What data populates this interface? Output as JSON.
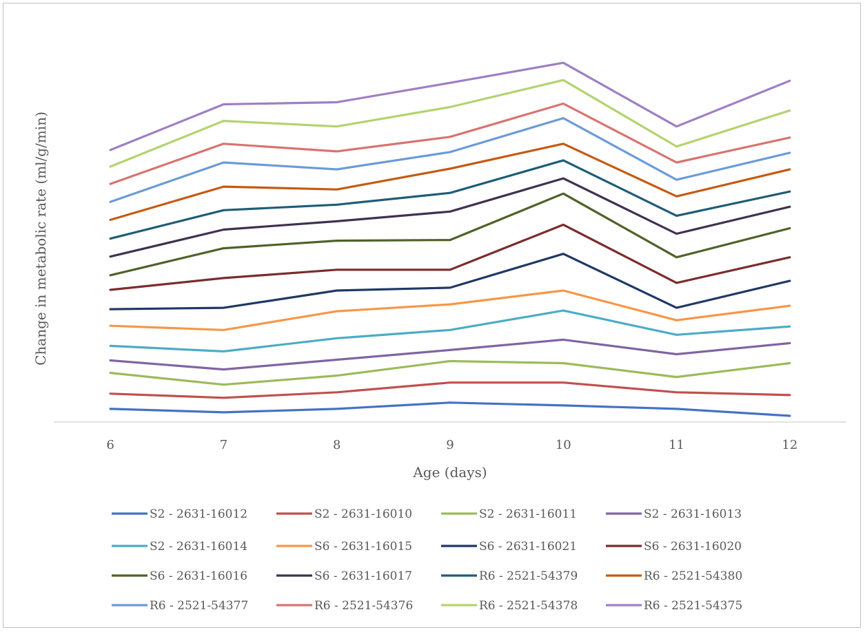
{
  "chart_data": {
    "type": "line",
    "title": "",
    "xlabel": "Age (days)",
    "ylabel": "Change in metabolic rate (ml/g/min)",
    "x": [
      6,
      7,
      8,
      9,
      10,
      11,
      12
    ],
    "y_ticks_shown": false,
    "grid": false,
    "legend_position": "bottom",
    "series": [
      {
        "name": "S2 - 2631-16012",
        "color": "#4472C4",
        "values": [
          0.019,
          0.014,
          0.019,
          0.028,
          0.024,
          0.019,
          0.009
        ]
      },
      {
        "name": "S2 - 2631-16010",
        "color": "#C0504D",
        "values": [
          0.041,
          0.035,
          0.043,
          0.057,
          0.057,
          0.043,
          0.039
        ]
      },
      {
        "name": "S2 - 2631-16011",
        "color": "#9BBB59",
        "values": [
          0.071,
          0.054,
          0.067,
          0.088,
          0.085,
          0.065,
          0.085
        ]
      },
      {
        "name": "S2 - 2631-16013",
        "color": "#8064A2",
        "values": [
          0.089,
          0.076,
          0.09,
          0.104,
          0.119,
          0.098,
          0.114
        ]
      },
      {
        "name": "S2 - 2631-16014",
        "color": "#4BACC6",
        "values": [
          0.11,
          0.102,
          0.121,
          0.133,
          0.161,
          0.126,
          0.138
        ]
      },
      {
        "name": "S6 - 2631-16015",
        "color": "#F79646",
        "values": [
          0.139,
          0.133,
          0.16,
          0.17,
          0.19,
          0.147,
          0.168
        ]
      },
      {
        "name": "S6 - 2631-16021",
        "color": "#1F3864",
        "values": [
          0.163,
          0.165,
          0.19,
          0.194,
          0.243,
          0.165,
          0.204
        ]
      },
      {
        "name": "S6 - 2631-16020",
        "color": "#7B2C2C",
        "values": [
          0.191,
          0.208,
          0.22,
          0.22,
          0.285,
          0.201,
          0.238
        ]
      },
      {
        "name": "S6 - 2631-16016",
        "color": "#4F6228",
        "values": [
          0.212,
          0.251,
          0.262,
          0.263,
          0.33,
          0.238,
          0.28
        ]
      },
      {
        "name": "S6 - 2631-16017",
        "color": "#3F3151",
        "values": [
          0.239,
          0.278,
          0.29,
          0.304,
          0.352,
          0.272,
          0.311
        ]
      },
      {
        "name": "R6 - 2521-54379",
        "color": "#1F5C78",
        "values": [
          0.265,
          0.306,
          0.314,
          0.331,
          0.378,
          0.298,
          0.333
        ]
      },
      {
        "name": "R6 - 2521-54380",
        "color": "#C55A11",
        "values": [
          0.292,
          0.34,
          0.336,
          0.366,
          0.402,
          0.326,
          0.365
        ]
      },
      {
        "name": "R6 - 2521-54377",
        "color": "#6A9BD8",
        "values": [
          0.318,
          0.375,
          0.365,
          0.39,
          0.439,
          0.35,
          0.389
        ]
      },
      {
        "name": "R6 - 2521-54376",
        "color": "#D9736F",
        "values": [
          0.344,
          0.402,
          0.391,
          0.412,
          0.46,
          0.375,
          0.411
        ]
      },
      {
        "name": "R6 - 2521-54378",
        "color": "#B3D36E",
        "values": [
          0.369,
          0.435,
          0.427,
          0.455,
          0.494,
          0.398,
          0.45
        ]
      },
      {
        "name": "R6 - 2521-54375",
        "color": "#9E7FC4",
        "values": [
          0.393,
          0.459,
          0.462,
          0.49,
          0.519,
          0.427,
          0.493
        ]
      }
    ]
  }
}
